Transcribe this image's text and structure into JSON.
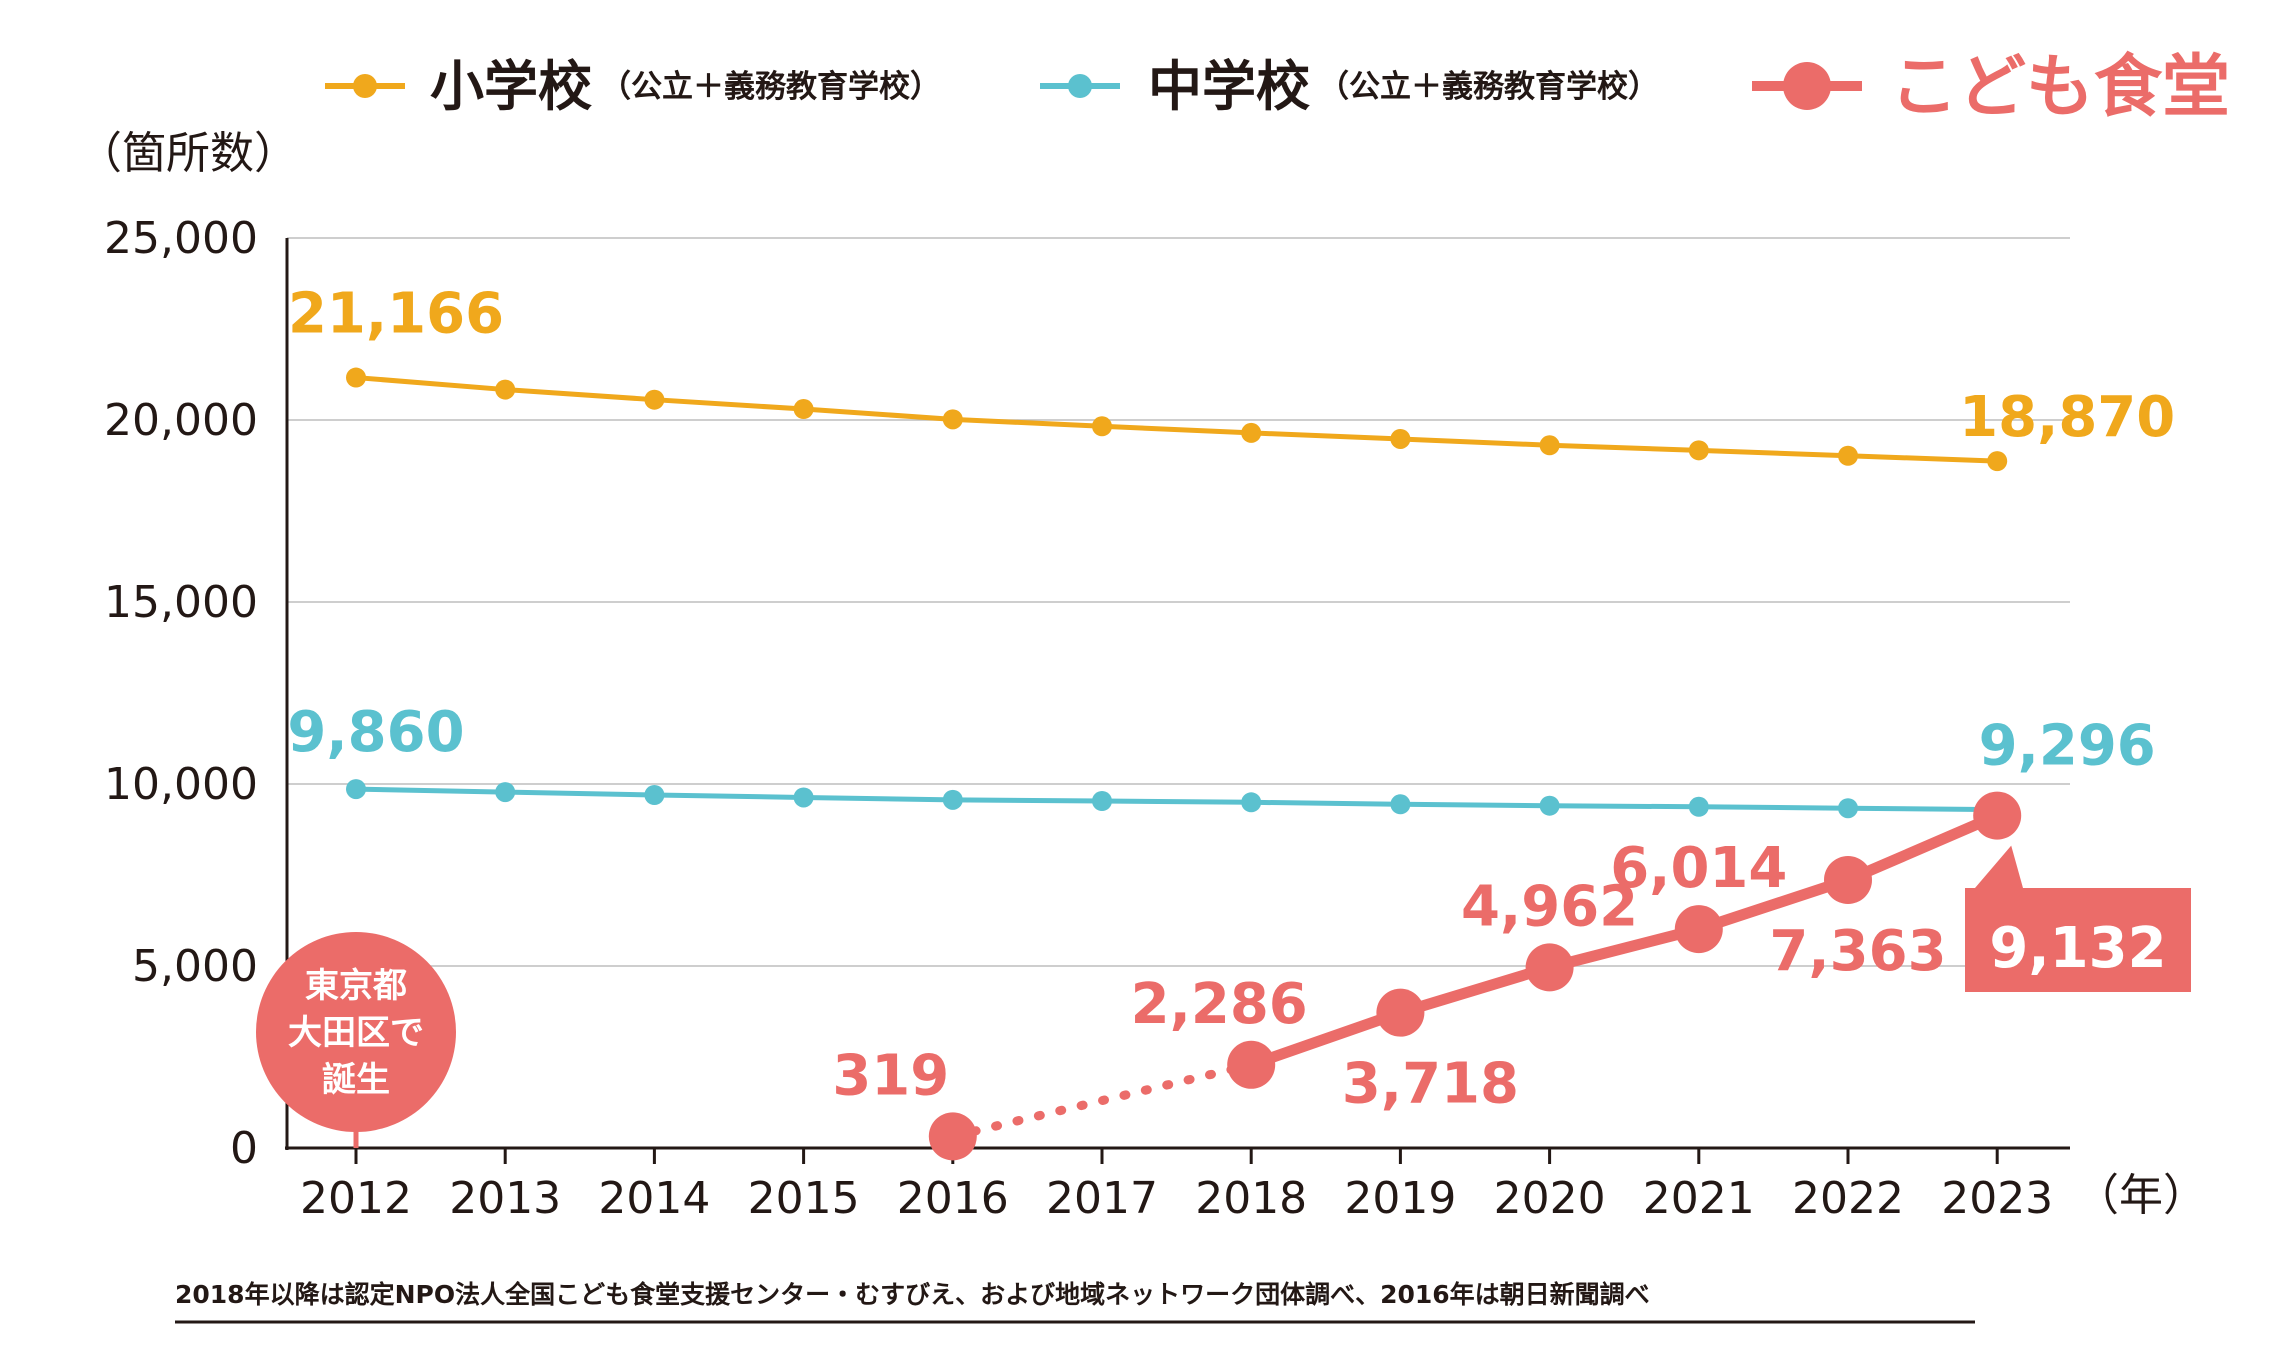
{
  "chart_data": {
    "type": "line",
    "ylabel": "（箇所数）",
    "xlabel": "（年）",
    "ylim": [
      0,
      25000
    ],
    "yticks": [
      0,
      5000,
      10000,
      15000,
      20000,
      25000
    ],
    "ytick_labels": [
      "0",
      "5,000",
      "10,000",
      "15,000",
      "20,000",
      "25,000"
    ],
    "categories": [
      "2012",
      "2013",
      "2014",
      "2015",
      "2016",
      "2017",
      "2018",
      "2019",
      "2020",
      "2021",
      "2022",
      "2023"
    ],
    "grid": "horizontal",
    "legend": [
      {
        "name": "小学校",
        "note": "（公立＋義務教育学校）"
      },
      {
        "name": "中学校",
        "note": "（公立＋義務教育学校）"
      },
      {
        "name": "こども食堂",
        "note": ""
      }
    ],
    "series": [
      {
        "name": "小学校",
        "color": "#f0a81c",
        "values": [
          21166,
          20836,
          20558,
          20301,
          20018,
          19827,
          19645,
          19479,
          19306,
          19167,
          19018,
          18870
        ],
        "labels": [
          {
            "index": 0,
            "text": "21,166"
          },
          {
            "index": 11,
            "text": "18,870"
          }
        ]
      },
      {
        "name": "中学校",
        "color": "#5bc1cf",
        "values": [
          9860,
          9778,
          9698,
          9630,
          9565,
          9533,
          9497,
          9443,
          9404,
          9374,
          9335,
          9296
        ],
        "labels": [
          {
            "index": 0,
            "text": "9,860"
          },
          {
            "index": 11,
            "text": "9,296"
          }
        ]
      },
      {
        "name": "こども食堂",
        "color": "#eb6c69",
        "x": [
          "2016",
          "2018",
          "2019",
          "2020",
          "2021",
          "2022",
          "2023"
        ],
        "values": [
          319,
          2286,
          3718,
          4962,
          6014,
          7363,
          9132
        ],
        "labels": [
          "319",
          "2,286",
          "3,718",
          "4,962",
          "6,014",
          "7,363",
          "9,132"
        ],
        "dotted_segment": [
          "2016",
          "2018"
        ]
      }
    ],
    "annotations": {
      "origin_badge": [
        "東京都",
        "大田区で",
        "誕生"
      ]
    },
    "source": "2018年以降は認定NPO法人全国こども食堂支援センター・むすびえ、および地域ネットワーク団体調べ、2016年は朝日新聞調べ"
  }
}
